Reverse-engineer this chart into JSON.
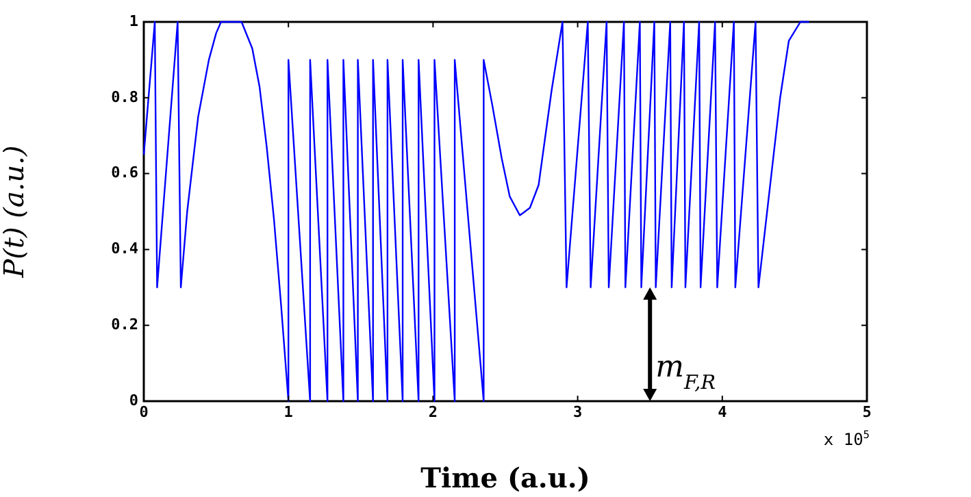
{
  "chart_data": {
    "type": "line",
    "xlabel": "Time (a.u.)",
    "ylabel": "P(t) (a.u.)",
    "x": [
      0,
      0.076,
      0.092,
      0.234,
      0.256,
      0.3,
      0.376,
      0.45,
      0.5,
      0.534,
      0.676,
      0.75,
      0.8,
      0.85,
      0.9,
      0.95,
      1.0,
      1.0,
      1.15,
      1.15,
      1.27,
      1.27,
      1.38,
      1.38,
      1.48,
      1.48,
      1.585,
      1.585,
      1.685,
      1.685,
      1.79,
      1.79,
      1.9,
      1.9,
      2.01,
      2.01,
      2.15,
      2.15,
      2.35,
      2.35,
      2.41,
      2.475,
      2.53,
      2.6,
      2.67,
      2.73,
      2.82,
      2.895,
      2.923,
      3.07,
      3.09,
      3.2,
      3.215,
      3.32,
      3.33,
      3.43,
      3.44,
      3.53,
      3.54,
      3.64,
      3.65,
      3.735,
      3.745,
      3.84,
      3.85,
      3.95,
      3.965,
      4.08,
      4.09,
      4.23,
      4.25,
      4.31,
      4.4,
      4.46,
      4.54,
      4.6
    ],
    "series": [
      {
        "color": "#0000ff",
        "values": [
          0.65,
          1,
          0.3,
          1,
          0.3,
          0.5,
          0.75,
          0.9,
          0.97,
          1,
          1,
          0.93,
          0.83,
          0.67,
          0.48,
          0.25,
          0,
          0.9,
          0,
          0.9,
          0,
          0.9,
          0,
          0.9,
          0,
          0.9,
          0,
          0.9,
          0,
          0.9,
          0,
          0.9,
          0,
          0.9,
          0,
          0.9,
          0,
          0.9,
          0,
          0.9,
          0.78,
          0.64,
          0.54,
          0.49,
          0.51,
          0.57,
          0.82,
          1,
          0.3,
          1,
          0.3,
          1,
          0.3,
          1,
          0.3,
          1,
          0.3,
          1,
          0.3,
          1,
          0.3,
          1,
          0.3,
          1,
          0.3,
          1,
          0.3,
          1,
          0.3,
          1,
          0.3,
          0.5,
          0.8,
          0.95,
          1,
          1
        ]
      }
    ],
    "xlim": [
      0,
      5
    ],
    "xticks": [
      0,
      1,
      2,
      3,
      4,
      5
    ],
    "ylim": [
      0,
      1
    ],
    "yticks": [
      0,
      0.2,
      0.4,
      0.6,
      0.8,
      1
    ],
    "grid": false,
    "legend": false,
    "marker": "none",
    "line_style": "solid",
    "annotations": [
      "x 10$^{5}$",
      {
        "text": "m$_{F,R}$",
        "x": 3.5,
        "y": 0.3
      }
    ]
  }
}
